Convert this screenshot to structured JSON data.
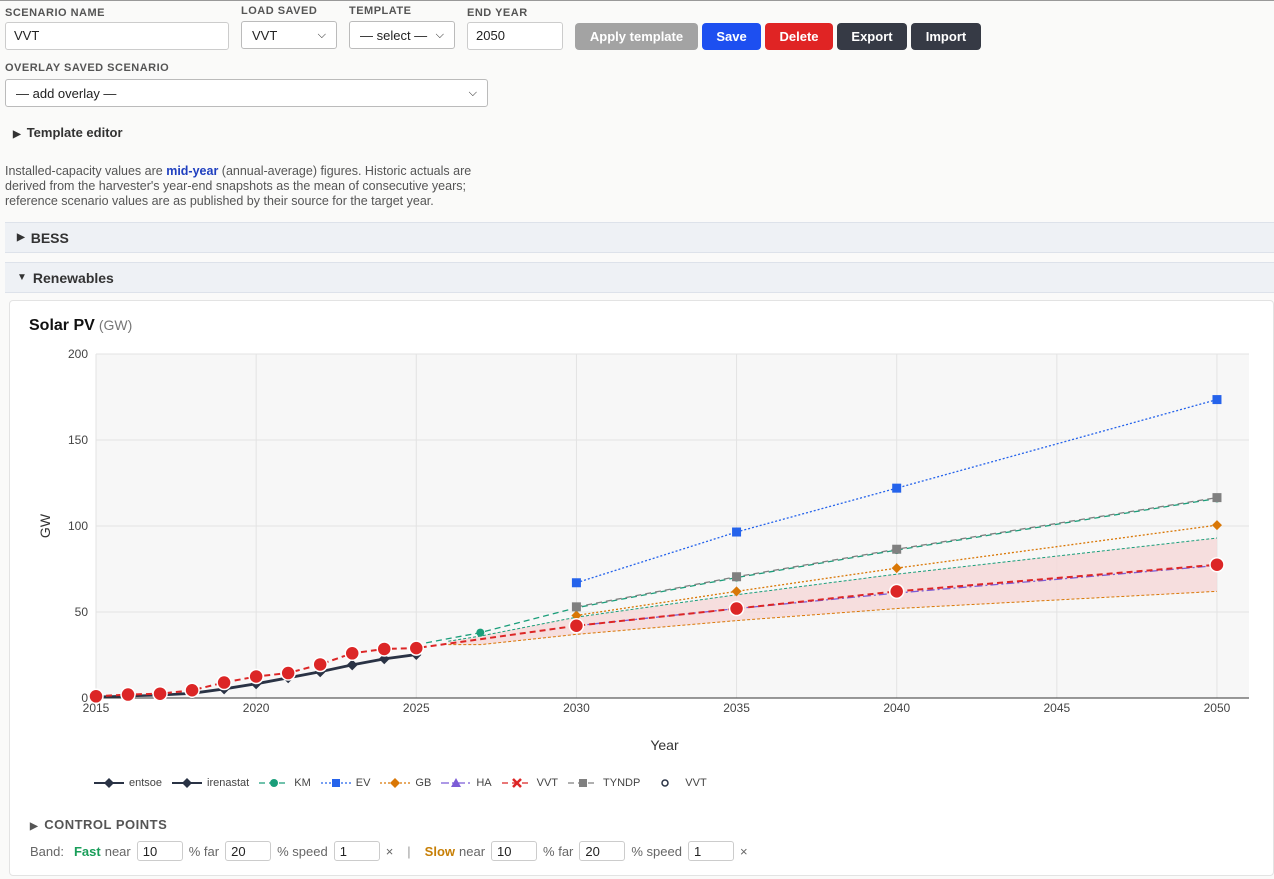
{
  "form": {
    "scenario_name_label": "SCENARIO NAME",
    "scenario_name_value": "VVT",
    "load_saved_label": "LOAD SAVED",
    "load_saved_value": "VVT",
    "template_label": "TEMPLATE",
    "template_value": "— select —",
    "end_year_label": "END YEAR",
    "end_year_value": "2050",
    "overlay_label": "OVERLAY SAVED SCENARIO",
    "overlay_value": "— add overlay —"
  },
  "buttons": {
    "apply_template": "Apply template",
    "save": "Save",
    "delete": "Delete",
    "export": "Export",
    "import": "Import"
  },
  "template_editor_label": "Template editor",
  "note": {
    "pre": "Installed-capacity values are ",
    "highlight": "mid-year",
    "post": " (annual-average) figures. Historic actuals are derived from the harvester's year-end snapshots as the mean of consecutive years; reference scenario values are as published by their source for the target year."
  },
  "sections": {
    "bess": "BESS",
    "renewables": "Renewables"
  },
  "chart_header": {
    "title": "Solar PV",
    "unit": "(GW)"
  },
  "colors": {
    "entsoe": "#2a3345",
    "irenastat": "#2a3345",
    "KM": "#1a9e7a",
    "EV": "#2563eb",
    "GB": "#d97706",
    "HA": "#7c5cd6",
    "VVT": "#dc2626",
    "TYNDP": "#808080",
    "band_fill": "#f6d9d9"
  },
  "chart_data": {
    "type": "line",
    "title": "Solar PV (GW)",
    "xlabel": "Year",
    "ylabel": "GW",
    "xlim": [
      2015,
      2051
    ],
    "ylim": [
      0,
      200
    ],
    "x_ticks": [
      2015,
      2020,
      2025,
      2030,
      2035,
      2040,
      2045,
      2050
    ],
    "y_ticks": [
      0,
      50,
      100,
      150,
      200
    ],
    "grid": true,
    "legend_position": "bottom",
    "series": [
      {
        "name": "entsoe",
        "style": "solid",
        "marker": "diamond",
        "x": [
          2015,
          2016,
          2017,
          2018,
          2019,
          2020,
          2021,
          2022,
          2023,
          2024,
          2025
        ],
        "y": [
          0.8,
          1.2,
          1.8,
          3.0,
          5.5,
          8.5,
          12,
          15.5,
          19.5,
          23,
          25.5
        ]
      },
      {
        "name": "irenastat",
        "style": "solid",
        "marker": "diamond",
        "x": [
          2015,
          2016,
          2017,
          2018,
          2019,
          2020,
          2021,
          2022,
          2023,
          2024,
          2025
        ],
        "y": [
          0.5,
          1.0,
          1.5,
          2.5,
          5,
          8,
          11.5,
          15,
          19,
          22.5,
          25
        ]
      },
      {
        "name": "KM",
        "style": "dash",
        "marker": "circle",
        "x": [
          2025,
          2027,
          2030,
          2035,
          2040,
          2050
        ],
        "y": [
          31,
          38,
          52.5,
          70,
          86,
          116
        ]
      },
      {
        "name": "EV",
        "style": "dot",
        "marker": "square",
        "x": [
          2030,
          2035,
          2040,
          2050
        ],
        "y": [
          67,
          96.5,
          122,
          173.5
        ]
      },
      {
        "name": "GB",
        "style": "dot",
        "marker": "diamond",
        "x": [
          2030,
          2035,
          2040,
          2050
        ],
        "y": [
          48,
          62,
          75.5,
          100.5
        ]
      },
      {
        "name": "HA",
        "style": "dashdot",
        "marker": "triangle",
        "x": [
          2030,
          2035,
          2040,
          2050
        ],
        "y": [
          42,
          52,
          61,
          77
        ]
      },
      {
        "name": "VVT",
        "style": "dash",
        "marker": "x",
        "x": [
          2015,
          2016,
          2017,
          2018,
          2019,
          2020,
          2021,
          2022,
          2023,
          2024,
          2025,
          2030,
          2035,
          2040,
          2050
        ],
        "y": [
          1,
          2,
          2.5,
          4.5,
          9,
          12.5,
          14.5,
          19.5,
          26,
          28.5,
          29,
          42,
          52,
          62,
          77.5
        ]
      },
      {
        "name": "TYNDP",
        "style": "dash",
        "marker": "square",
        "x": [
          2030,
          2035,
          2040,
          2050
        ],
        "y": [
          53,
          70.5,
          86.5,
          116.5
        ]
      },
      {
        "name": "VVT",
        "style": "none",
        "marker": "circle-open",
        "x": [
          2015,
          2016,
          2017,
          2018,
          2019,
          2020,
          2021,
          2022,
          2023,
          2024,
          2025,
          2030,
          2035,
          2040,
          2050
        ],
        "y": [
          1,
          2,
          2.5,
          4.5,
          9,
          12.5,
          14.5,
          19.5,
          26,
          28.5,
          29,
          42,
          52,
          62,
          77.5
        ]
      }
    ],
    "bands": {
      "fast": {
        "x": [
          2026,
          2027,
          2030,
          2035,
          2040,
          2050
        ],
        "y": [
          33,
          36,
          47,
          60,
          72,
          93
        ]
      },
      "slow": {
        "x": [
          2026,
          2027,
          2030,
          2035,
          2040,
          2050
        ],
        "y": [
          31,
          31,
          37,
          45,
          52,
          62
        ]
      }
    }
  },
  "control_points_label": "CONTROL POINTS",
  "band": {
    "label": "Band:",
    "fast_label": "Fast",
    "slow_label": "Slow",
    "near_label": "near",
    "far_label": "% far",
    "speed_label": "% speed",
    "times": "×",
    "sep": "|",
    "fast_near": "10",
    "fast_far": "20",
    "fast_speed": "1",
    "slow_near": "10",
    "slow_far": "20",
    "slow_speed": "1"
  }
}
